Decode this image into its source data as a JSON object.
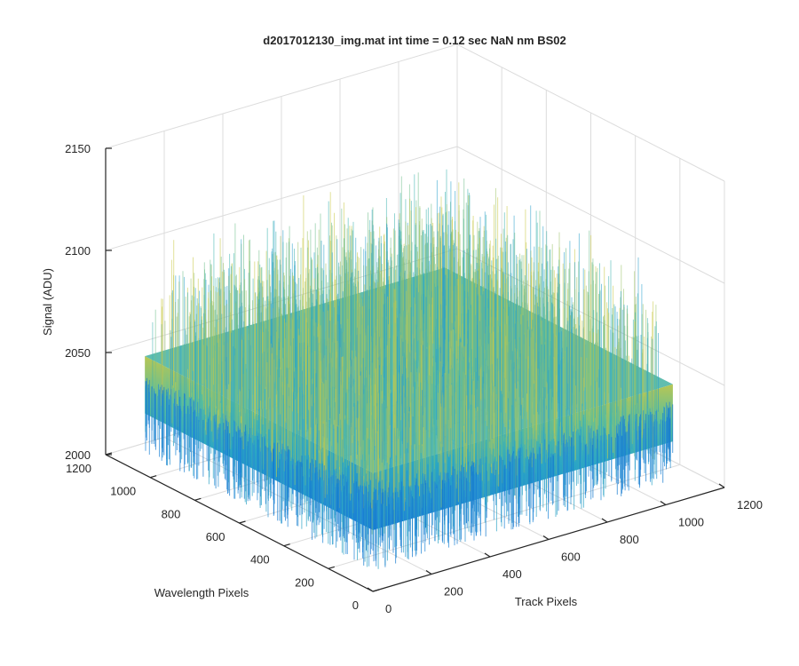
{
  "chart_data": {
    "type": "surface",
    "title": "d2017012130_img.mat int time = 0.12 sec  NaN nm BS02",
    "xlabel": "Track Pixels",
    "ylabel": "Wavelength Pixels",
    "zlabel": "Signal (ADU)",
    "xlim": [
      0,
      1200
    ],
    "ylim": [
      0,
      1200
    ],
    "zlim": [
      2000,
      2150
    ],
    "x_ticks": [
      "0",
      "200",
      "400",
      "600",
      "800",
      "1000",
      "1200"
    ],
    "y_ticks": [
      "0",
      "200",
      "400",
      "600",
      "800",
      "1000",
      "1200"
    ],
    "z_ticks": [
      "2000",
      "2050",
      "2100",
      "2150"
    ],
    "data_extent": {
      "x": [
        0,
        1024
      ],
      "y": [
        0,
        1024
      ]
    },
    "z_mean": 2058,
    "z_range_approx": [
      2010,
      2120
    ],
    "colormap": "parula",
    "grid": true,
    "colors": {
      "low": "#0072BD",
      "mid": "#36B9A8",
      "high": "#D9C93C"
    }
  }
}
